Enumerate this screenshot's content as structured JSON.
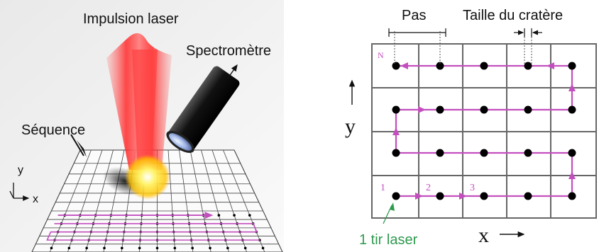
{
  "left_panel": {
    "title": "Impulsion laser",
    "spectrometer_label": "Spectromètre",
    "sequence_label": "Séquence",
    "axis_y": "y",
    "axis_x": "x"
  },
  "right_panel": {
    "step_label": "Pas",
    "crater_label": "Taille du cratère",
    "axis_y": "y",
    "axis_x": "x",
    "start_label": "N",
    "order_labels": [
      "1",
      "2",
      "3"
    ],
    "shot_label": "1 tir laser"
  },
  "colors": {
    "path": "#c34fbf",
    "grid": "#666666",
    "laser": "#ff2a2a",
    "flash": "#ffe85a",
    "shot_label": "#2e9a4e"
  }
}
